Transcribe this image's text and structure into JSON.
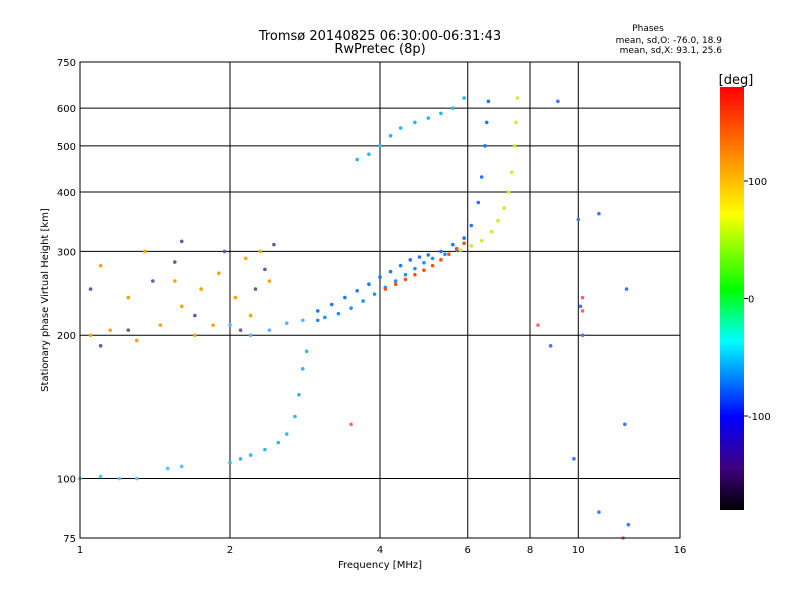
{
  "chart_data": {
    "type": "scatter",
    "title": "Tromsø 20140825 06:30:00-06:31:43",
    "subtitle": "RwPretec (8p)",
    "xlabel": "Frequency [MHz]",
    "ylabel": "Stationary phase Virtual Height [km]",
    "x_scale": "log",
    "y_scale": "log",
    "xlim": [
      1,
      16
    ],
    "ylim": [
      75,
      750
    ],
    "x_ticks": [
      1,
      2,
      4,
      6,
      8,
      10,
      16
    ],
    "y_ticks": [
      75,
      100,
      200,
      300,
      400,
      500,
      600,
      750
    ],
    "grid": true,
    "stats_title": "Phases",
    "stats_line1": "mean, sd,O: -76.0, 18.9",
    "stats_line2": "mean, sd,X:  93.1, 25.6",
    "colorbar": {
      "unit_label": "[deg]",
      "range": [
        -180,
        180
      ],
      "ticks": [
        100,
        0,
        -100
      ],
      "colors": [
        "#ff0000",
        "#ff8000",
        "#ffff00",
        "#00ff00",
        "#00ffff",
        "#0000ff",
        "#400080",
        "#000000"
      ]
    },
    "series": [
      {
        "color": "#1e78ff",
        "points": [
          [
            3.0,
            225
          ],
          [
            3.2,
            232
          ],
          [
            3.4,
            240
          ],
          [
            3.6,
            248
          ],
          [
            3.8,
            256
          ],
          [
            4.0,
            265
          ],
          [
            4.2,
            272
          ],
          [
            4.4,
            280
          ],
          [
            4.6,
            288
          ],
          [
            4.8,
            292
          ],
          [
            5.0,
            295
          ],
          [
            5.3,
            300
          ],
          [
            5.6,
            310
          ],
          [
            5.9,
            320
          ],
          [
            6.1,
            340
          ],
          [
            6.3,
            380
          ],
          [
            6.4,
            430
          ],
          [
            6.5,
            500
          ],
          [
            6.55,
            560
          ],
          [
            6.6,
            620
          ]
        ]
      },
      {
        "color": "#1e90ff",
        "points": [
          [
            3.0,
            215
          ],
          [
            3.1,
            218
          ],
          [
            3.3,
            222
          ],
          [
            3.5,
            228
          ],
          [
            3.7,
            236
          ],
          [
            3.9,
            244
          ],
          [
            4.1,
            252
          ],
          [
            4.3,
            260
          ],
          [
            4.5,
            268
          ],
          [
            4.7,
            276
          ],
          [
            4.9,
            284
          ],
          [
            5.1,
            290
          ],
          [
            5.4,
            296
          ],
          [
            5.7,
            302
          ]
        ]
      },
      {
        "color": "#ff5014",
        "points": [
          [
            4.1,
            250
          ],
          [
            4.3,
            256
          ],
          [
            4.5,
            262
          ],
          [
            4.7,
            268
          ],
          [
            4.9,
            274
          ],
          [
            5.1,
            280
          ],
          [
            5.3,
            288
          ],
          [
            5.5,
            296
          ],
          [
            5.7,
            304
          ],
          [
            5.9,
            312
          ]
        ]
      },
      {
        "color": "#c8f020",
        "points": [
          [
            5.8,
            302
          ],
          [
            6.1,
            308
          ],
          [
            6.4,
            316
          ],
          [
            6.7,
            330
          ],
          [
            6.9,
            348
          ],
          [
            7.1,
            370
          ],
          [
            7.25,
            400
          ],
          [
            7.35,
            440
          ],
          [
            7.45,
            500
          ],
          [
            7.5,
            560
          ],
          [
            7.55,
            630
          ]
        ]
      },
      {
        "color": "#28b4f0",
        "points": [
          [
            3.6,
            468
          ],
          [
            3.8,
            480
          ],
          [
            4.0,
            500
          ],
          [
            4.2,
            525
          ],
          [
            4.4,
            545
          ],
          [
            4.7,
            560
          ],
          [
            5.0,
            572
          ],
          [
            5.3,
            585
          ],
          [
            5.6,
            600
          ],
          [
            5.9,
            630
          ]
        ]
      },
      {
        "color": "#3cb4f0",
        "points": [
          [
            2.0,
            108
          ],
          [
            2.1,
            110
          ],
          [
            2.2,
            112
          ],
          [
            2.35,
            115
          ],
          [
            2.5,
            119
          ],
          [
            2.6,
            124
          ],
          [
            2.7,
            135
          ],
          [
            2.75,
            150
          ],
          [
            2.8,
            170
          ],
          [
            2.85,
            185
          ]
        ]
      },
      {
        "color": "#50c8f0",
        "points": [
          [
            1.0,
            100
          ],
          [
            1.1,
            101
          ],
          [
            1.2,
            100
          ],
          [
            1.3,
            100
          ],
          [
            1.5,
            105
          ],
          [
            1.6,
            106
          ]
        ]
      },
      {
        "color": "#50b4ff",
        "points": [
          [
            2.0,
            210
          ],
          [
            2.2,
            200
          ],
          [
            2.4,
            205
          ],
          [
            2.6,
            212
          ],
          [
            2.8,
            215
          ]
        ]
      },
      {
        "color": "#ffa000",
        "points": [
          [
            1.05,
            200
          ],
          [
            1.15,
            205
          ],
          [
            1.3,
            195
          ],
          [
            1.45,
            210
          ],
          [
            1.6,
            230
          ],
          [
            1.75,
            250
          ],
          [
            1.9,
            270
          ],
          [
            2.05,
            240
          ],
          [
            2.2,
            220
          ],
          [
            2.4,
            260
          ],
          [
            1.1,
            280
          ],
          [
            1.35,
            300
          ],
          [
            1.55,
            260
          ],
          [
            1.85,
            210
          ],
          [
            2.15,
            290
          ],
          [
            1.25,
            240
          ],
          [
            1.7,
            200
          ],
          [
            2.3,
            300
          ]
        ]
      },
      {
        "color": "#7850a0",
        "points": [
          [
            1.1,
            190
          ],
          [
            1.25,
            205
          ],
          [
            1.4,
            260
          ],
          [
            1.55,
            285
          ],
          [
            1.7,
            220
          ],
          [
            1.95,
            300
          ],
          [
            2.25,
            250
          ],
          [
            2.45,
            310
          ],
          [
            1.05,
            250
          ],
          [
            1.6,
            315
          ],
          [
            2.1,
            205
          ],
          [
            2.35,
            275
          ]
        ]
      },
      {
        "color": "#3c78ff",
        "points": [
          [
            9.1,
            620
          ],
          [
            10.0,
            350
          ],
          [
            10.2,
            200
          ],
          [
            11.0,
            85
          ],
          [
            12.6,
            80
          ],
          [
            12.5,
            250
          ],
          [
            12.4,
            130
          ],
          [
            9.8,
            110
          ],
          [
            8.8,
            190
          ],
          [
            10.1,
            230
          ],
          [
            11.0,
            360
          ]
        ]
      },
      {
        "color": "#ff6464",
        "points": [
          [
            8.3,
            210
          ],
          [
            10.2,
            240
          ],
          [
            10.2,
            225
          ],
          [
            12.3,
            75
          ],
          [
            3.5,
            130
          ]
        ]
      }
    ]
  }
}
